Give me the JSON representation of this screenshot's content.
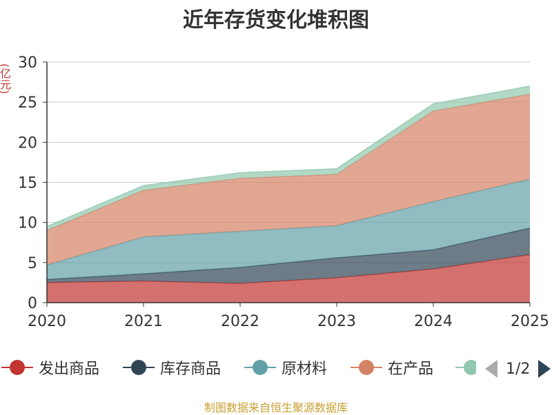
{
  "chart_data": {
    "type": "area",
    "stacked": true,
    "title": "近年存货变化堆积图",
    "ylabel": "(亿元)",
    "xlabel": "",
    "x": [
      "2020",
      "2021",
      "2022",
      "2023",
      "2024",
      "2025"
    ],
    "yticks": [
      "0",
      "5",
      "10",
      "15",
      "20",
      "25",
      "30"
    ],
    "ylim": [
      0,
      30
    ],
    "grid": true,
    "series": [
      {
        "name": "发出商品",
        "color": "#c23531",
        "values": [
          2.5,
          2.7,
          2.4,
          3.1,
          4.2,
          6.0
        ]
      },
      {
        "name": "库存商品",
        "color": "#2f4554",
        "values": [
          0.4,
          0.9,
          2.0,
          2.5,
          2.4,
          3.3
        ]
      },
      {
        "name": "原材料",
        "color": "#61a0a8",
        "values": [
          1.8,
          4.6,
          4.5,
          4.0,
          6.0,
          6.1
        ]
      },
      {
        "name": "在产品",
        "color": "#d48265",
        "values": [
          4.3,
          5.8,
          6.6,
          6.4,
          11.3,
          10.6
        ]
      },
      {
        "name": "",
        "color": "#91c7ae",
        "values": [
          0.5,
          0.6,
          0.7,
          0.7,
          0.9,
          1.0
        ]
      }
    ]
  },
  "legend": {
    "items": [
      {
        "label": "发出商品",
        "color": "#c23531"
      },
      {
        "label": "库存商品",
        "color": "#2f4554"
      },
      {
        "label": "原材料",
        "color": "#61a0a8"
      },
      {
        "label": "在产品",
        "color": "#d48265"
      },
      {
        "label": "",
        "color": "#91c7ae"
      }
    ],
    "page": "1/2"
  },
  "source": "制图数据来自恒生聚源数据库"
}
